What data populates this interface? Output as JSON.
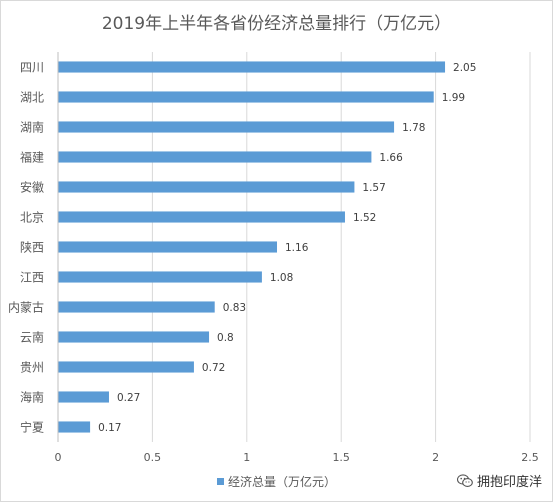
{
  "chart_data": {
    "type": "bar",
    "orientation": "horizontal",
    "title": "2019年上半年各省份经济总量排行（万亿元）",
    "categories": [
      "四川",
      "湖北",
      "湖南",
      "福建",
      "安徽",
      "北京",
      "陕西",
      "江西",
      "内蒙古",
      "云南",
      "贵州",
      "海南",
      "宁夏"
    ],
    "series": [
      {
        "name": "经济总量（万亿元）",
        "values": [
          2.05,
          1.99,
          1.78,
          1.66,
          1.57,
          1.52,
          1.16,
          1.08,
          0.83,
          0.8,
          0.72,
          0.27,
          0.17
        ],
        "labels": [
          "2.05",
          "1.99",
          "1.78",
          "1.66",
          "1.57",
          "1.52",
          "1.16",
          "1.08",
          "0.83",
          "0.8",
          "0.72",
          "0.27",
          "0.17"
        ]
      }
    ],
    "xlim": [
      0,
      2.5
    ],
    "xticks": [
      "0",
      "0.5",
      "1",
      "1.5",
      "2",
      "2.5"
    ],
    "grid": true,
    "legend_position": "bottom",
    "bar_color": "#5b9bd5"
  },
  "watermark": {
    "text": "拥抱印度洋"
  }
}
